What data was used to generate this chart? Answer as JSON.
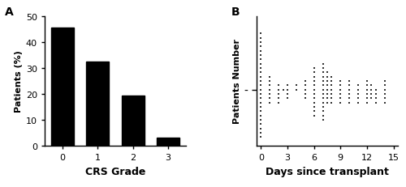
{
  "bar_categories": [
    "0",
    "1",
    "2",
    "3"
  ],
  "bar_values": [
    45.5,
    32.5,
    19.5,
    3.0
  ],
  "bar_color": "#000000",
  "bar_xlabel": "CRS Grade",
  "bar_ylabel": "Patients (%)",
  "bar_ylim": [
    0,
    50
  ],
  "bar_yticks": [
    0,
    10,
    20,
    30,
    40,
    50
  ],
  "panel_a_label": "A",
  "panel_b_label": "B",
  "scatter_xlabel": "Days since transplant",
  "scatter_ylabel": "Patients Number",
  "scatter_xticks": [
    0,
    3,
    6,
    9,
    12,
    15
  ],
  "scatter_xlim": [
    -0.5,
    15.5
  ],
  "scatter_ylim": [
    0,
    30
  ],
  "scatter_color": "#333333",
  "scatter_dot_size": 2.5,
  "scatter_columns": [
    {
      "x": 0,
      "y_min": 2,
      "y_max": 26,
      "step": 1
    },
    {
      "x": 1,
      "y_min": 10,
      "y_max": 16,
      "step": 1
    },
    {
      "x": 2,
      "y_min": 10,
      "y_max": 14,
      "step": 1
    },
    {
      "x": 2.5,
      "y_min": 13,
      "y_max": 13,
      "step": 1
    },
    {
      "x": 3,
      "y_min": 11,
      "y_max": 14,
      "step": 1
    },
    {
      "x": 4,
      "y_min": 13,
      "y_max": 14,
      "step": 1
    },
    {
      "x": 5,
      "y_min": 11,
      "y_max": 15,
      "step": 1
    },
    {
      "x": 6,
      "y_min": 7,
      "y_max": 18,
      "step": 1
    },
    {
      "x": 7,
      "y_min": 6,
      "y_max": 19,
      "step": 1
    },
    {
      "x": 7.5,
      "y_min": 10,
      "y_max": 17,
      "step": 1
    },
    {
      "x": 8,
      "y_min": 10,
      "y_max": 16,
      "step": 1
    },
    {
      "x": 9,
      "y_min": 10,
      "y_max": 15,
      "step": 1
    },
    {
      "x": 10,
      "y_min": 10,
      "y_max": 15,
      "step": 1
    },
    {
      "x": 11,
      "y_min": 10,
      "y_max": 14,
      "step": 1
    },
    {
      "x": 12,
      "y_min": 10,
      "y_max": 15,
      "step": 1
    },
    {
      "x": 12.5,
      "y_min": 11,
      "y_max": 14,
      "step": 1
    },
    {
      "x": 13,
      "y_min": 10,
      "y_max": 13,
      "step": 1
    },
    {
      "x": 14,
      "y_min": 10,
      "y_max": 15,
      "step": 1
    }
  ],
  "scatter_ytick_val": 13,
  "scatter_ytick_label": "-"
}
